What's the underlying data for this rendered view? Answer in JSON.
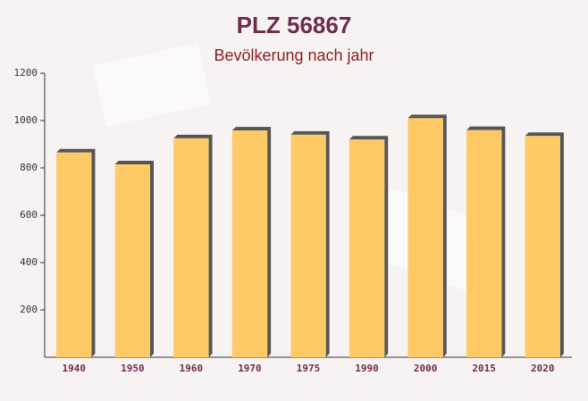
{
  "chart_data": {
    "type": "bar",
    "title": "PLZ 56867",
    "subtitle": "Bevölkerung nach jahr",
    "categories": [
      "1940",
      "1950",
      "1960",
      "1970",
      "1975",
      "1990",
      "2000",
      "2015",
      "2020"
    ],
    "values": [
      865,
      815,
      925,
      958,
      940,
      920,
      1010,
      960,
      935
    ],
    "color": "#ffc966",
    "ylim": [
      0,
      1200
    ],
    "yticks": [
      200,
      400,
      600,
      800,
      1000,
      1200
    ],
    "grid": false
  }
}
